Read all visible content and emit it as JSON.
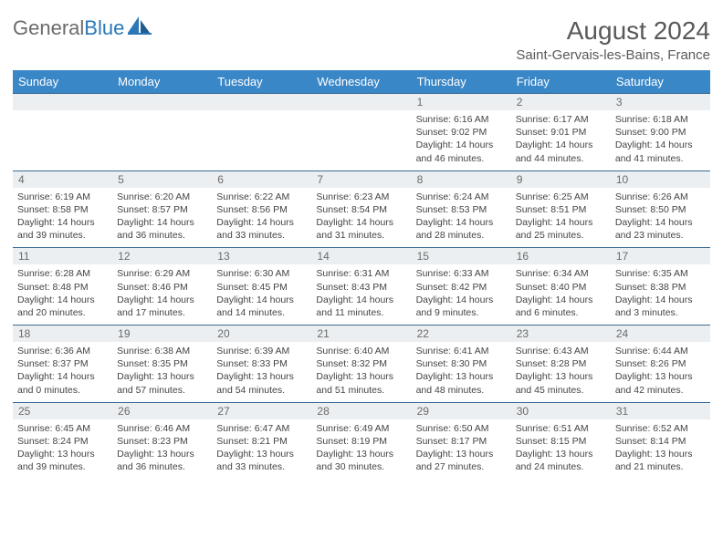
{
  "logo": {
    "text1": "General",
    "text2": "Blue"
  },
  "title": "August 2024",
  "subtitle": "Saint-Gervais-les-Bains, France",
  "colors": {
    "header_bg": "#3a87c7",
    "header_fg": "#ffffff",
    "daynum_bg": "#eceff1",
    "row_border": "#3a6a93",
    "title_color": "#595959",
    "logo_gray": "#6b6b6b",
    "logo_blue": "#2a78b8"
  },
  "weekdays": [
    "Sunday",
    "Monday",
    "Tuesday",
    "Wednesday",
    "Thursday",
    "Friday",
    "Saturday"
  ],
  "first_weekday_index": 4,
  "days_in_month": 31,
  "days": {
    "1": {
      "sunrise": "6:16 AM",
      "sunset": "9:02 PM",
      "dh": 14,
      "dm": 46
    },
    "2": {
      "sunrise": "6:17 AM",
      "sunset": "9:01 PM",
      "dh": 14,
      "dm": 44
    },
    "3": {
      "sunrise": "6:18 AM",
      "sunset": "9:00 PM",
      "dh": 14,
      "dm": 41
    },
    "4": {
      "sunrise": "6:19 AM",
      "sunset": "8:58 PM",
      "dh": 14,
      "dm": 39
    },
    "5": {
      "sunrise": "6:20 AM",
      "sunset": "8:57 PM",
      "dh": 14,
      "dm": 36
    },
    "6": {
      "sunrise": "6:22 AM",
      "sunset": "8:56 PM",
      "dh": 14,
      "dm": 33
    },
    "7": {
      "sunrise": "6:23 AM",
      "sunset": "8:54 PM",
      "dh": 14,
      "dm": 31
    },
    "8": {
      "sunrise": "6:24 AM",
      "sunset": "8:53 PM",
      "dh": 14,
      "dm": 28
    },
    "9": {
      "sunrise": "6:25 AM",
      "sunset": "8:51 PM",
      "dh": 14,
      "dm": 25
    },
    "10": {
      "sunrise": "6:26 AM",
      "sunset": "8:50 PM",
      "dh": 14,
      "dm": 23
    },
    "11": {
      "sunrise": "6:28 AM",
      "sunset": "8:48 PM",
      "dh": 14,
      "dm": 20
    },
    "12": {
      "sunrise": "6:29 AM",
      "sunset": "8:46 PM",
      "dh": 14,
      "dm": 17
    },
    "13": {
      "sunrise": "6:30 AM",
      "sunset": "8:45 PM",
      "dh": 14,
      "dm": 14
    },
    "14": {
      "sunrise": "6:31 AM",
      "sunset": "8:43 PM",
      "dh": 14,
      "dm": 11
    },
    "15": {
      "sunrise": "6:33 AM",
      "sunset": "8:42 PM",
      "dh": 14,
      "dm": 9
    },
    "16": {
      "sunrise": "6:34 AM",
      "sunset": "8:40 PM",
      "dh": 14,
      "dm": 6
    },
    "17": {
      "sunrise": "6:35 AM",
      "sunset": "8:38 PM",
      "dh": 14,
      "dm": 3
    },
    "18": {
      "sunrise": "6:36 AM",
      "sunset": "8:37 PM",
      "dh": 14,
      "dm": 0
    },
    "19": {
      "sunrise": "6:38 AM",
      "sunset": "8:35 PM",
      "dh": 13,
      "dm": 57
    },
    "20": {
      "sunrise": "6:39 AM",
      "sunset": "8:33 PM",
      "dh": 13,
      "dm": 54
    },
    "21": {
      "sunrise": "6:40 AM",
      "sunset": "8:32 PM",
      "dh": 13,
      "dm": 51
    },
    "22": {
      "sunrise": "6:41 AM",
      "sunset": "8:30 PM",
      "dh": 13,
      "dm": 48
    },
    "23": {
      "sunrise": "6:43 AM",
      "sunset": "8:28 PM",
      "dh": 13,
      "dm": 45
    },
    "24": {
      "sunrise": "6:44 AM",
      "sunset": "8:26 PM",
      "dh": 13,
      "dm": 42
    },
    "25": {
      "sunrise": "6:45 AM",
      "sunset": "8:24 PM",
      "dh": 13,
      "dm": 39
    },
    "26": {
      "sunrise": "6:46 AM",
      "sunset": "8:23 PM",
      "dh": 13,
      "dm": 36
    },
    "27": {
      "sunrise": "6:47 AM",
      "sunset": "8:21 PM",
      "dh": 13,
      "dm": 33
    },
    "28": {
      "sunrise": "6:49 AM",
      "sunset": "8:19 PM",
      "dh": 13,
      "dm": 30
    },
    "29": {
      "sunrise": "6:50 AM",
      "sunset": "8:17 PM",
      "dh": 13,
      "dm": 27
    },
    "30": {
      "sunrise": "6:51 AM",
      "sunset": "8:15 PM",
      "dh": 13,
      "dm": 24
    },
    "31": {
      "sunrise": "6:52 AM",
      "sunset": "8:14 PM",
      "dh": 13,
      "dm": 21
    }
  },
  "labels": {
    "sunrise": "Sunrise:",
    "sunset": "Sunset:",
    "daylight": "Daylight:",
    "hours": "hours",
    "and": "and",
    "minutes": "minutes."
  }
}
